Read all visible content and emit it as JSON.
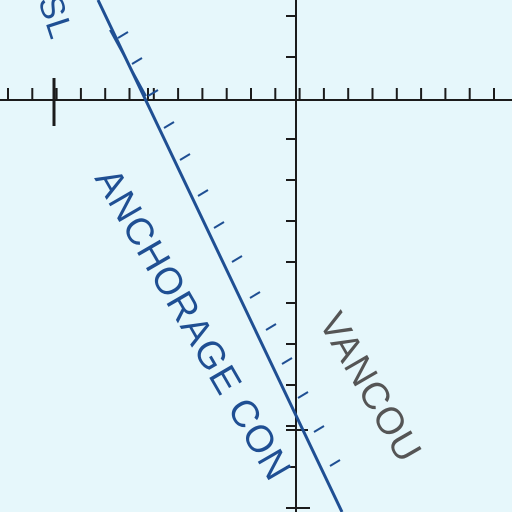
{
  "colors": {
    "background": "#e6f7fb",
    "grid": "#1b1b1b",
    "boundary_blue": "#1f4f93",
    "anchorage_text": "#1f4f93",
    "vancouver_text": "#555555"
  },
  "labels": {
    "anchorage": "ANCHORAGE CON",
    "vancouver": "VANCOU",
    "msl_fragment": "SL"
  }
}
